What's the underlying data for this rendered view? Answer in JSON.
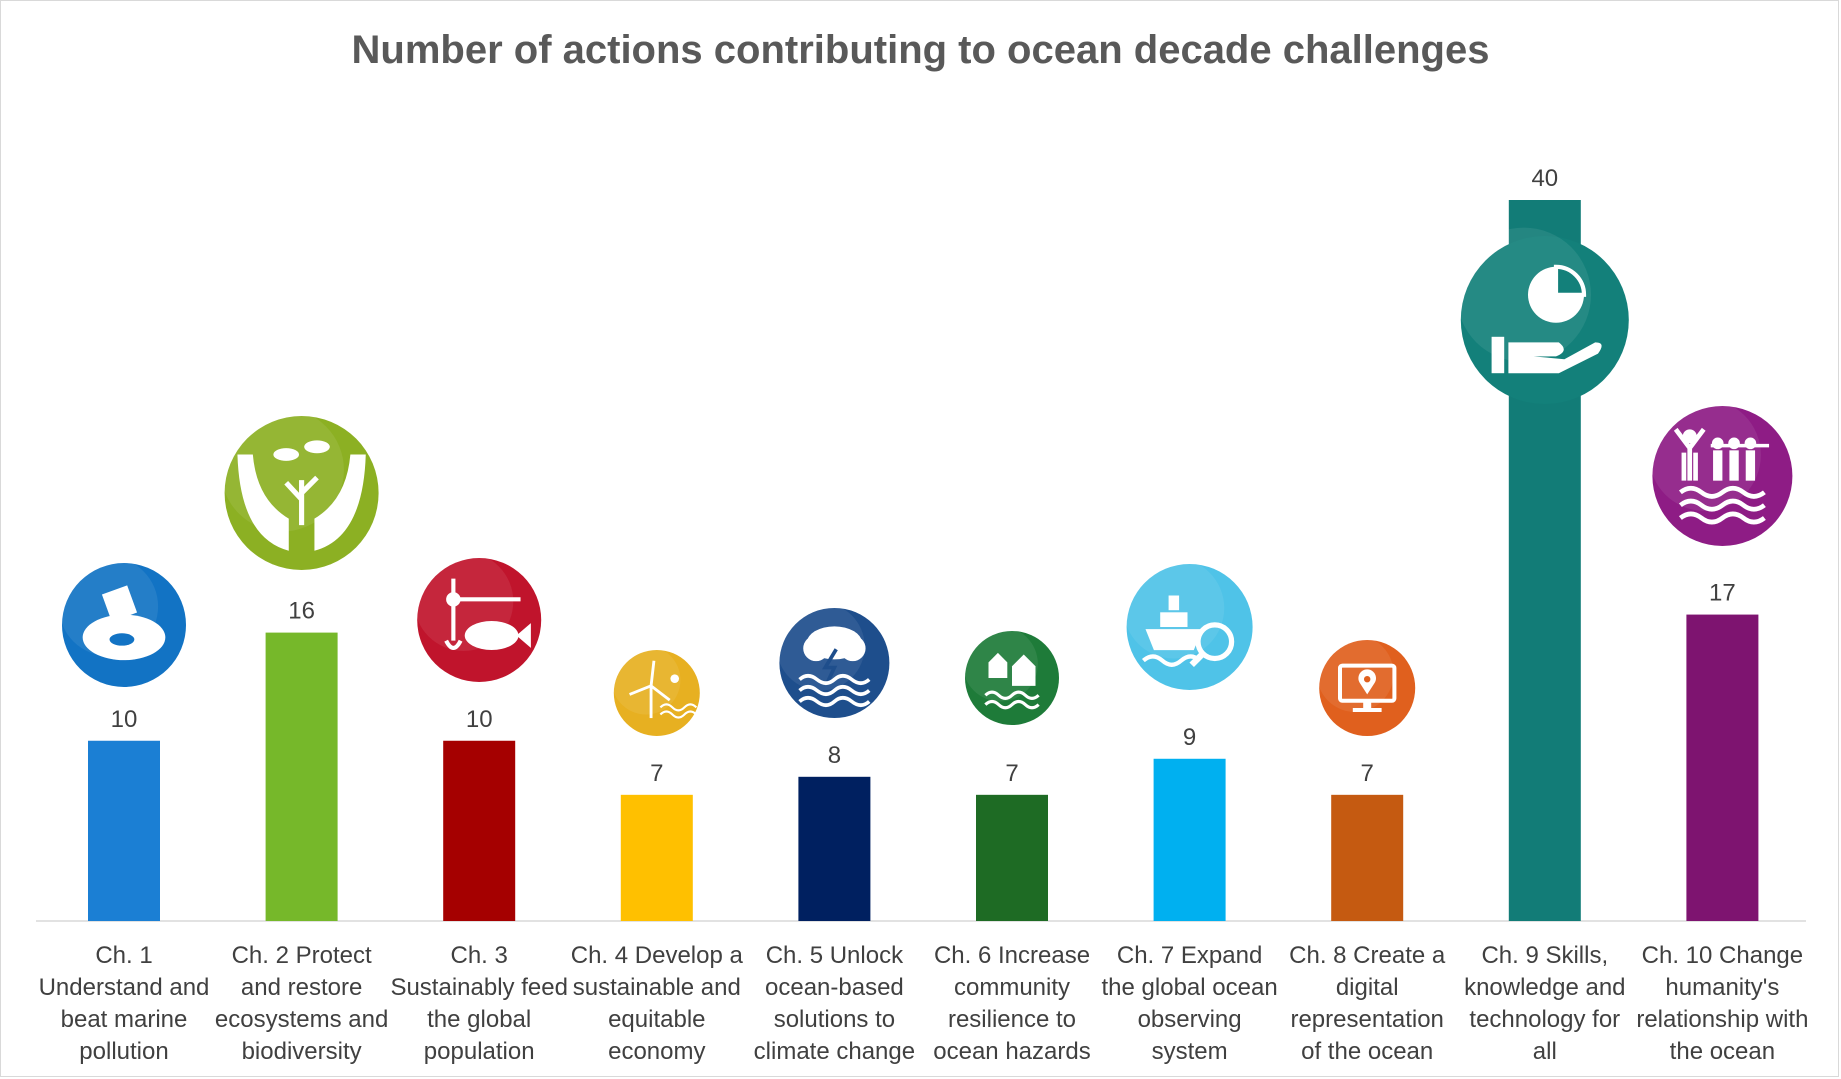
{
  "chart_data": {
    "type": "bar",
    "title": "Number of actions contributing to ocean decade challenges",
    "xlabel": "",
    "ylabel": "",
    "ylim": [
      0,
      40
    ],
    "grid": false,
    "legend": "none",
    "categories": [
      "Ch. 1 Understand and beat marine pollution",
      "Ch. 2 Protect and restore ecosystems and biodiversity",
      "Ch. 3 Sustainably feed the global population",
      "Ch. 4 Develop a sustainable and equitable economy",
      "Ch. 5 Unlock ocean-based solutions to climate change",
      "Ch. 6 Increase community resilience to ocean hazards",
      "Ch. 7 Expand the global ocean observing system",
      "Ch. 8 Create a digital representation of the ocean",
      "Ch. 9 Skills, knowledge and technology for all",
      "Ch. 10 Change humanity's relationship with the ocean"
    ],
    "values": [
      10,
      16,
      10,
      7,
      8,
      7,
      9,
      7,
      40,
      17
    ],
    "colors": [
      "#1B7FD4",
      "#76B82A",
      "#A50000",
      "#FFC000",
      "#002060",
      "#1E6B24",
      "#00B0F0",
      "#C55A11",
      "#127C77",
      "#7E1470"
    ],
    "icons": [
      "pollution-pipe-icon",
      "hands-fish-coral-icon",
      "fishing-rod-fish-icon",
      "wind-turbine-waves-icon",
      "storm-cloud-waves-icon",
      "houses-waves-icon",
      "ship-magnifier-icon",
      "monitor-location-pin-icon",
      "hand-pie-chart-icon",
      "people-waves-icon"
    ],
    "icon_colors": [
      "#1273C4",
      "#8CB023",
      "#C0142C",
      "#E7B021",
      "#1E4E8C",
      "#1E7B39",
      "#4FC3E8",
      "#E0601E",
      "#13807A",
      "#8E1C85"
    ]
  }
}
